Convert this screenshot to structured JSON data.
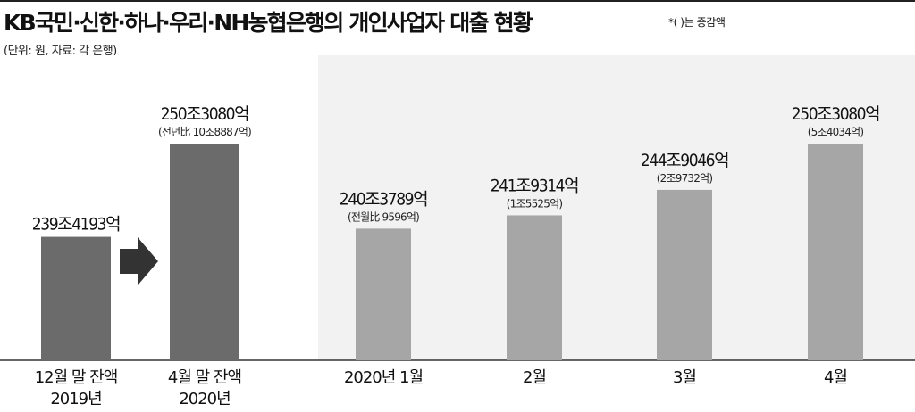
{
  "header": {
    "title": "KB국민·신한·하나·우리·NH농협은행의 개인사업자 대출 현황",
    "note": "*(   )는 증감액",
    "unit_source": "(단위: 원, 자료: 각 은행)"
  },
  "chart_data": [
    {
      "type": "bar",
      "title": "",
      "categories": [
        [
          "12월 말 잔액",
          "2019년"
        ],
        [
          "4월 말 잔액",
          "2020년"
        ]
      ],
      "values": [
        239.4193,
        250.308
      ],
      "value_labels": [
        "239조4193억",
        "250조3080억"
      ],
      "change_labels": [
        "",
        "(전년比 10조8887억)"
      ],
      "colors": [
        "#6b6b6b",
        "#6b6b6b"
      ],
      "arrow_icon": "right-arrow-icon"
    },
    {
      "type": "bar",
      "title": "",
      "categories": [
        "2020년  1월",
        "2월",
        "3월",
        "4월"
      ],
      "values": [
        240.3789,
        241.9314,
        244.9046,
        250.308
      ],
      "value_labels": [
        "240조3789억",
        "241조9314억",
        "244조9046억",
        "250조3080억"
      ],
      "change_labels": [
        "(전월比 9596억)",
        "(1조5525억)",
        "(2조9732억)",
        "(5조4034억)"
      ],
      "colors": [
        "#a6a6a6",
        "#a6a6a6",
        "#a6a6a6",
        "#a6a6a6"
      ]
    }
  ]
}
